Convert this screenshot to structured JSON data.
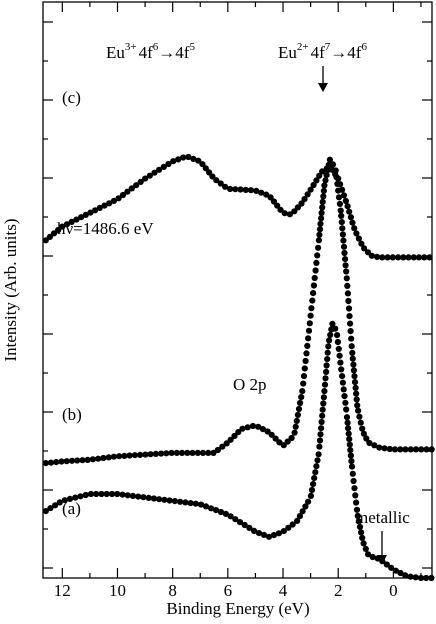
{
  "chart_data": {
    "type": "scatter",
    "xlabel": "Binding Energy (eV)",
    "ylabel": "Intensity (Arb. units)",
    "xlim": [
      12.7,
      -1.4
    ],
    "x_reversed": true,
    "xticks": [
      12,
      10,
      8,
      6,
      4,
      2,
      0
    ],
    "xtick_labels": [
      "12",
      "10",
      "8",
      "6",
      "4",
      "2",
      "0"
    ],
    "y_ticks_unlabeled": true,
    "grid": false,
    "legend": "none",
    "series": [
      {
        "name": "(a)",
        "points": [
          [
            12.6,
            0.13
          ],
          [
            12,
            0.16
          ],
          [
            11,
            0.18
          ],
          [
            10,
            0.18
          ],
          [
            9,
            0.17
          ],
          [
            8,
            0.16
          ],
          [
            7,
            0.15
          ],
          [
            6,
            0.12
          ],
          [
            5,
            0.07
          ],
          [
            4.5,
            0.055
          ],
          [
            4,
            0.07
          ],
          [
            3.5,
            0.1
          ],
          [
            3,
            0.17
          ],
          [
            2.7,
            0.3
          ],
          [
            2.5,
            0.48
          ],
          [
            2.35,
            0.62
          ],
          [
            2.2,
            0.68
          ],
          [
            2.05,
            0.65
          ],
          [
            1.9,
            0.55
          ],
          [
            1.7,
            0.42
          ],
          [
            1.5,
            0.26
          ],
          [
            1.3,
            0.12
          ],
          [
            1.1,
            0.04
          ],
          [
            0.9,
            0.0
          ],
          [
            0.5,
            -0.01
          ],
          [
            0,
            -0.04
          ],
          [
            -0.5,
            -0.06
          ],
          [
            -1,
            -0.065
          ],
          [
            -1.4,
            -0.065
          ]
        ]
      },
      {
        "name": "(b)",
        "points": [
          [
            12.6,
            0.27
          ],
          [
            12,
            0.275
          ],
          [
            11,
            0.28
          ],
          [
            10,
            0.29
          ],
          [
            9,
            0.295
          ],
          [
            8,
            0.3
          ],
          [
            7,
            0.3
          ],
          [
            6.5,
            0.3
          ],
          [
            6,
            0.33
          ],
          [
            5.5,
            0.37
          ],
          [
            5,
            0.38
          ],
          [
            4.5,
            0.36
          ],
          [
            4,
            0.32
          ],
          [
            3.6,
            0.35
          ],
          [
            3.3,
            0.48
          ],
          [
            3,
            0.7
          ],
          [
            2.7,
            0.92
          ],
          [
            2.5,
            1.08
          ],
          [
            2.3,
            1.155
          ],
          [
            2.1,
            1.13
          ],
          [
            1.9,
            1.0
          ],
          [
            1.7,
            0.82
          ],
          [
            1.5,
            0.6
          ],
          [
            1.3,
            0.43
          ],
          [
            1.1,
            0.36
          ],
          [
            0.9,
            0.33
          ],
          [
            0.5,
            0.315
          ],
          [
            0,
            0.31
          ],
          [
            -0.5,
            0.31
          ],
          [
            -1,
            0.31
          ],
          [
            -1.4,
            0.31
          ]
        ]
      },
      {
        "name": "(c)",
        "points": [
          [
            12.6,
            0.92
          ],
          [
            12,
            0.96
          ],
          [
            11,
            1.0
          ],
          [
            10,
            1.04
          ],
          [
            9,
            1.1
          ],
          [
            8,
            1.15
          ],
          [
            7.5,
            1.165
          ],
          [
            7,
            1.15
          ],
          [
            6.5,
            1.1
          ],
          [
            6,
            1.07
          ],
          [
            5.5,
            1.068
          ],
          [
            5,
            1.065
          ],
          [
            4.5,
            1.05
          ],
          [
            4,
            1.0
          ],
          [
            3.7,
            0.995
          ],
          [
            3.3,
            1.03
          ],
          [
            2.9,
            1.08
          ],
          [
            2.6,
            1.12
          ],
          [
            2.3,
            1.135
          ],
          [
            2.0,
            1.1
          ],
          [
            1.7,
            1.03
          ],
          [
            1.4,
            0.95
          ],
          [
            1.1,
            0.9
          ],
          [
            0.8,
            0.875
          ],
          [
            0.5,
            0.87
          ],
          [
            0,
            0.87
          ],
          [
            -0.5,
            0.87
          ],
          [
            -1,
            0.87
          ],
          [
            -1.4,
            0.87
          ]
        ]
      }
    ],
    "annotations": {
      "eu3_text": "Eu",
      "eu3_sup": "3+",
      "eu3_mid": "4f",
      "eu3_sup2": "6",
      "eu3_arrow": "→4f",
      "eu3_sup3": "5",
      "eu2_text": "Eu",
      "eu2_sup": "2+",
      "eu2_mid": "4f",
      "eu2_sup2": "7",
      "eu2_arrow": "→4f",
      "eu2_sup3": "6",
      "hv": "hν=1486.6 eV",
      "o2p": "O 2p",
      "metallic": "metallic",
      "label_a": "(a)",
      "label_b": "(b)",
      "label_c": "(c)"
    }
  }
}
